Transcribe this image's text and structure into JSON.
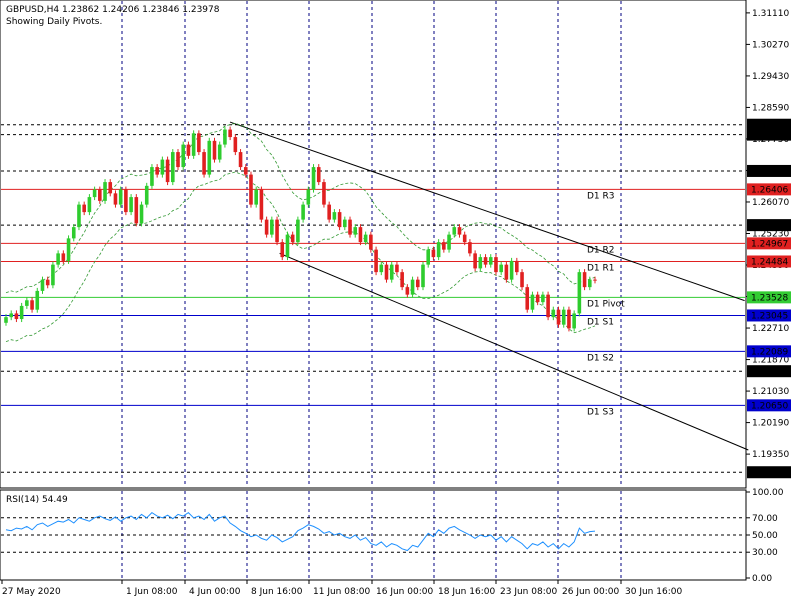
{
  "header": {
    "line1": "GBPUSD,H4  1.23862 1.24206 1.23846 1.23978",
    "line2": "Showing Daily Pivots."
  },
  "rsi": {
    "label": "RSI(14) 54.49"
  },
  "colors": {
    "bull": "#2ecc2e",
    "bear": "#e02020",
    "pivot": "#33cc33",
    "resistance": "#e02020",
    "support": "#0000cc",
    "grid": "#000080",
    "channel": "#000000",
    "envelope": "#339933",
    "rsi_line": "#1e90ff",
    "price_tag": "#0000cc"
  },
  "chart_data": [
    {
      "type": "candlestick",
      "symbol": "GBPUSD",
      "timeframe": "H4",
      "ylim": [
        1.185,
        1.314
      ],
      "y_ticks": [
        "1.31110",
        "1.30270",
        "1.29430",
        "1.28590",
        "1.27750",
        "1.26910",
        "1.26070",
        "1.25230",
        "1.24390",
        "1.23550",
        "1.22710",
        "1.21870",
        "1.21030",
        "1.20190",
        "1.19350"
      ],
      "x_ticks": [
        "27 May 2020",
        "1 Jun 08:00",
        "4 Jun 00:00",
        "8 Jun 16:00",
        "11 Jun 08:00",
        "16 Jun 00:00",
        "18 Jun 16:00",
        "23 Jun 08:00",
        "26 Jun 00:00",
        "30 Jun 16:00"
      ],
      "pivot_lines": [
        {
          "name": "D1 R3",
          "value": 1.26406,
          "tag": "1.26406",
          "kind": "resistance"
        },
        {
          "name": "D1 R2",
          "value": 1.24967,
          "tag": "1.24967",
          "kind": "resistance"
        },
        {
          "name": "D1 R1",
          "value": 1.24484,
          "tag": "1.24484",
          "kind": "resistance"
        },
        {
          "name": "D1 Pivot",
          "value": 1.23528,
          "tag": "1.23528",
          "kind": "pivot"
        },
        {
          "name": "D1 S1",
          "value": 1.23045,
          "tag": "1.23045",
          "kind": "support"
        },
        {
          "name": "D1 S2",
          "value": 1.22089,
          "tag": "1.22089",
          "kind": "support"
        },
        {
          "name": "D1 S3",
          "value": 1.2065,
          "tag": "1.20650",
          "kind": "support"
        }
      ],
      "dashed_levels": [
        {
          "value": 1.28129,
          "tag": "1.28129"
        },
        {
          "value": 1.27865,
          "tag": "1.27865"
        },
        {
          "value": 1.26897,
          "tag": "1.26897"
        },
        {
          "value": 1.25453,
          "tag": "1.25453"
        },
        {
          "value": 1.2156,
          "tag": "1.21560"
        },
        {
          "value": 1.18867,
          "tag": "1.18867"
        }
      ],
      "channel": {
        "upper": [
          [
            1.282,
            0.305
          ],
          [
            1.2344,
            0.932
          ]
        ],
        "lower": [
          [
            1.247,
            0.372
          ],
          [
            1.1946,
            0.937
          ]
        ]
      },
      "close": [
        1.23,
        1.231,
        1.2295,
        1.233,
        1.2345,
        1.232,
        1.237,
        1.24,
        1.2385,
        1.244,
        1.247,
        1.245,
        1.251,
        1.254,
        1.26,
        1.258,
        1.262,
        1.264,
        1.261,
        1.266,
        1.263,
        1.26,
        1.264,
        1.258,
        1.262,
        1.255,
        1.26,
        1.265,
        1.27,
        1.268,
        1.272,
        1.266,
        1.274,
        1.27,
        1.276,
        1.273,
        1.279,
        1.274,
        1.268,
        1.277,
        1.272,
        1.276,
        1.28,
        1.278,
        1.274,
        1.27,
        1.268,
        1.26,
        1.264,
        1.256,
        1.252,
        1.256,
        1.25,
        1.246,
        1.252,
        1.25,
        1.256,
        1.26,
        1.264,
        1.27,
        1.266,
        1.26,
        1.256,
        1.258,
        1.254,
        1.256,
        1.252,
        1.254,
        1.25,
        1.252,
        1.248,
        1.242,
        1.244,
        1.24,
        1.244,
        1.242,
        1.238,
        1.236,
        1.24,
        1.238,
        1.244,
        1.248,
        1.246,
        1.25,
        1.248,
        1.252,
        1.254,
        1.252,
        1.25,
        1.247,
        1.243,
        1.246,
        1.244,
        1.246,
        1.242,
        1.244,
        1.24,
        1.245,
        1.242,
        1.238,
        1.232,
        1.236,
        1.234,
        1.236,
        1.23,
        1.232,
        1.228,
        1.232,
        1.227,
        1.231,
        1.242,
        1.238,
        1.24,
        1.2398
      ],
      "rsi": {
        "ylim": [
          0,
          100
        ],
        "y_ticks": [
          "100.00",
          "70.00",
          "50.00",
          "30.00",
          "0.00"
        ],
        "levels": [
          70,
          50,
          30
        ],
        "values": [
          56,
          55,
          58,
          57,
          60,
          56,
          62,
          64,
          60,
          63,
          66,
          65,
          68,
          64,
          70,
          68,
          66,
          70,
          72,
          69,
          67,
          71,
          66,
          70,
          72,
          68,
          74,
          70,
          76,
          72,
          70,
          73,
          69,
          74,
          72,
          76,
          70,
          72,
          68,
          74,
          66,
          70,
          72,
          64,
          60,
          55,
          52,
          48,
          50,
          46,
          44,
          50,
          47,
          42,
          45,
          48,
          55,
          58,
          62,
          60,
          57,
          52,
          54,
          50,
          52,
          48,
          46,
          50,
          44,
          47,
          40,
          38,
          42,
          36,
          40,
          38,
          34,
          32,
          38,
          36,
          44,
          52,
          48,
          56,
          52,
          58,
          60,
          56,
          53,
          50,
          46,
          50,
          48,
          50,
          44,
          48,
          42,
          48,
          44,
          40,
          34,
          40,
          38,
          42,
          36,
          40,
          34,
          40,
          36,
          42,
          58,
          52,
          54,
          54.49
        ]
      }
    }
  ]
}
